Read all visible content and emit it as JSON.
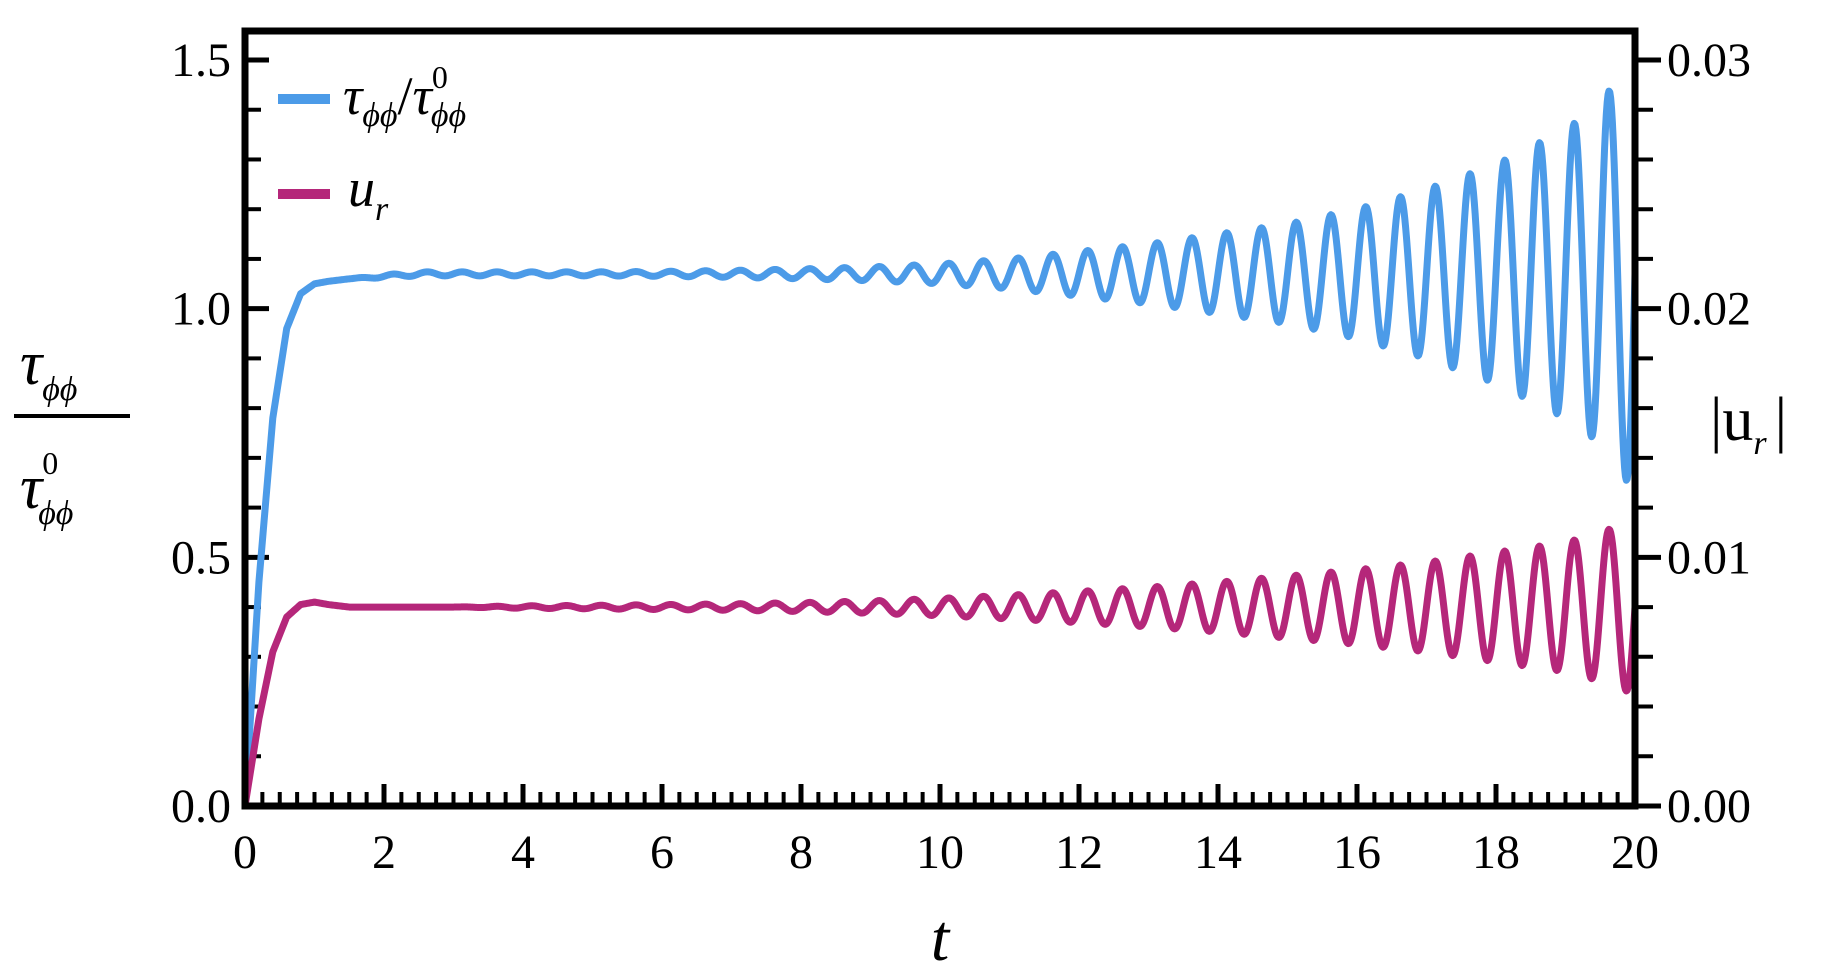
{
  "chart_data": {
    "type": "line",
    "xlabel": "t",
    "ylabel_left": {
      "main": "τ",
      "sub": "ϕϕ",
      "denom_main": "τ",
      "denom_sub": "ϕϕ",
      "denom_sup": "0"
    },
    "ylabel_right": "|u",
    "ylabel_right_sub": "r",
    "ylabel_right_close": "|",
    "xlim": [
      0,
      20
    ],
    "ylim_left": [
      0,
      1.5
    ],
    "ylim_right": [
      0,
      0.03
    ],
    "x_ticks": [
      "0",
      "2",
      "4",
      "6",
      "8",
      "10",
      "12",
      "14",
      "16",
      "18",
      "20"
    ],
    "y_ticks_left": [
      "0.0",
      "0.5",
      "1.0",
      "1.5"
    ],
    "y_ticks_right": [
      "0.00",
      "0.01",
      "0.02",
      "0.03"
    ],
    "grid": false,
    "legend_position": "top-left",
    "series": [
      {
        "name": "τϕϕ/τ0ϕϕ",
        "label": {
          "main": "τ",
          "sub": "ϕϕ",
          "slash": "/",
          "main2": "τ",
          "sup2": "0",
          "sub2": "ϕϕ"
        },
        "axis": "left",
        "color": "#4c9be8",
        "t": [
          0,
          0.2,
          0.4,
          0.6,
          0.8,
          1.0,
          1.2,
          1.5,
          2.0,
          2.5,
          3,
          4,
          5,
          6,
          7,
          8,
          9,
          10,
          11,
          12,
          13,
          14,
          15,
          16,
          17,
          18,
          19,
          19.4,
          19.7,
          20
        ],
        "base": [
          0,
          0.45,
          0.78,
          0.96,
          1.03,
          1.05,
          1.055,
          1.06,
          1.065,
          1.07,
          1.07,
          1.07,
          1.07,
          1.07,
          1.07,
          1.07,
          1.07,
          1.07,
          1.07,
          1.07,
          1.07,
          1.07,
          1.07,
          1.07,
          1.07,
          1.07,
          1.07,
          1.07,
          1.07,
          1.07
        ],
        "osc_amplitude": [
          0,
          0,
          0,
          0,
          0,
          0,
          0,
          0,
          0.003,
          0.004,
          0.004,
          0.004,
          0.004,
          0.005,
          0.007,
          0.01,
          0.014,
          0.02,
          0.03,
          0.045,
          0.06,
          0.08,
          0.1,
          0.13,
          0.17,
          0.22,
          0.29,
          0.33,
          0.38,
          0.44
        ]
      },
      {
        "name": "ur",
        "label": {
          "main": "u",
          "sub": "r"
        },
        "axis": "right",
        "color": "#b5277a",
        "t": [
          0,
          0.2,
          0.4,
          0.6,
          0.8,
          1.0,
          1.2,
          1.5,
          2.0,
          2.5,
          3,
          4,
          5,
          6,
          7,
          8,
          9,
          10,
          11,
          12,
          13,
          14,
          15,
          16,
          17,
          18,
          19,
          19.4,
          19.7,
          20
        ],
        "base": [
          0,
          0.0035,
          0.0062,
          0.0076,
          0.0081,
          0.0082,
          0.0081,
          0.008,
          0.008,
          0.008,
          0.008,
          0.008,
          0.008,
          0.008,
          0.008,
          0.008,
          0.008,
          0.008,
          0.008,
          0.008,
          0.008,
          0.008,
          0.008,
          0.008,
          0.008,
          0.008,
          0.008,
          0.008,
          0.008,
          0.008
        ],
        "osc_amplitude": [
          0,
          0,
          0,
          0,
          0,
          0,
          0,
          0,
          0,
          0,
          0,
          5e-05,
          7e-05,
          0.0001,
          0.00013,
          0.00018,
          0.00025,
          0.00035,
          0.00048,
          0.00063,
          0.0008,
          0.001,
          0.00125,
          0.0015,
          0.0018,
          0.0022,
          0.0026,
          0.0029,
          0.0032,
          0.0035
        ]
      }
    ],
    "oscillation_period": 0.5
  }
}
